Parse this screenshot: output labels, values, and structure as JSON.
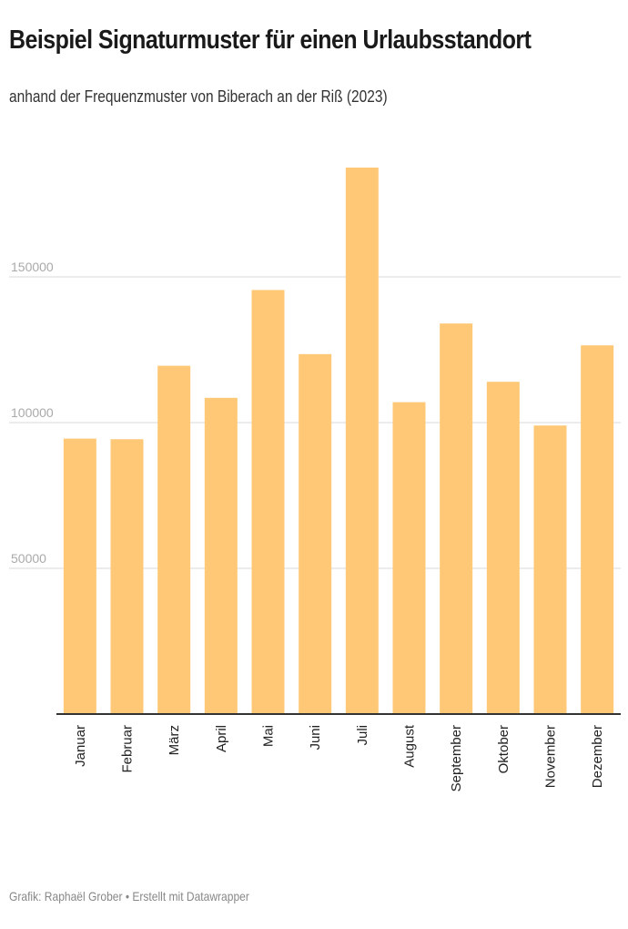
{
  "header": {
    "title": "Beispiel Signaturmuster für einen Urlaubsstandort",
    "subtitle": "anhand der Frequenzmuster von Biberach an der Riß (2023)"
  },
  "footer": {
    "credit": "Grafik: Raphaël Grober • Erstellt mit Datawrapper"
  },
  "colors": {
    "bar": "#fec877",
    "axis": "#333333",
    "grid": "#e6e6e6"
  },
  "chart_data": {
    "type": "bar",
    "title": "Beispiel Signaturmuster für einen Urlaubsstandort",
    "subtitle": "anhand der Frequenzmuster von Biberach an der Riß (2023)",
    "categories": [
      "Januar",
      "Februar",
      "März",
      "April",
      "Mai",
      "Juni",
      "Juli",
      "August",
      "September",
      "Oktober",
      "November",
      "Dezember"
    ],
    "values": [
      94500,
      94300,
      119500,
      108500,
      145500,
      123500,
      187500,
      107000,
      134000,
      114000,
      99000,
      126500
    ],
    "yticks": [
      {
        "value": 50000,
        "label": "50000"
      },
      {
        "value": 100000,
        "label": "100000"
      },
      {
        "value": 150000,
        "label": "150000"
      }
    ],
    "xlabel": "",
    "ylabel": "",
    "ylim": [
      0,
      200000
    ],
    "grid": true,
    "category_label_rotation": "vertical"
  }
}
